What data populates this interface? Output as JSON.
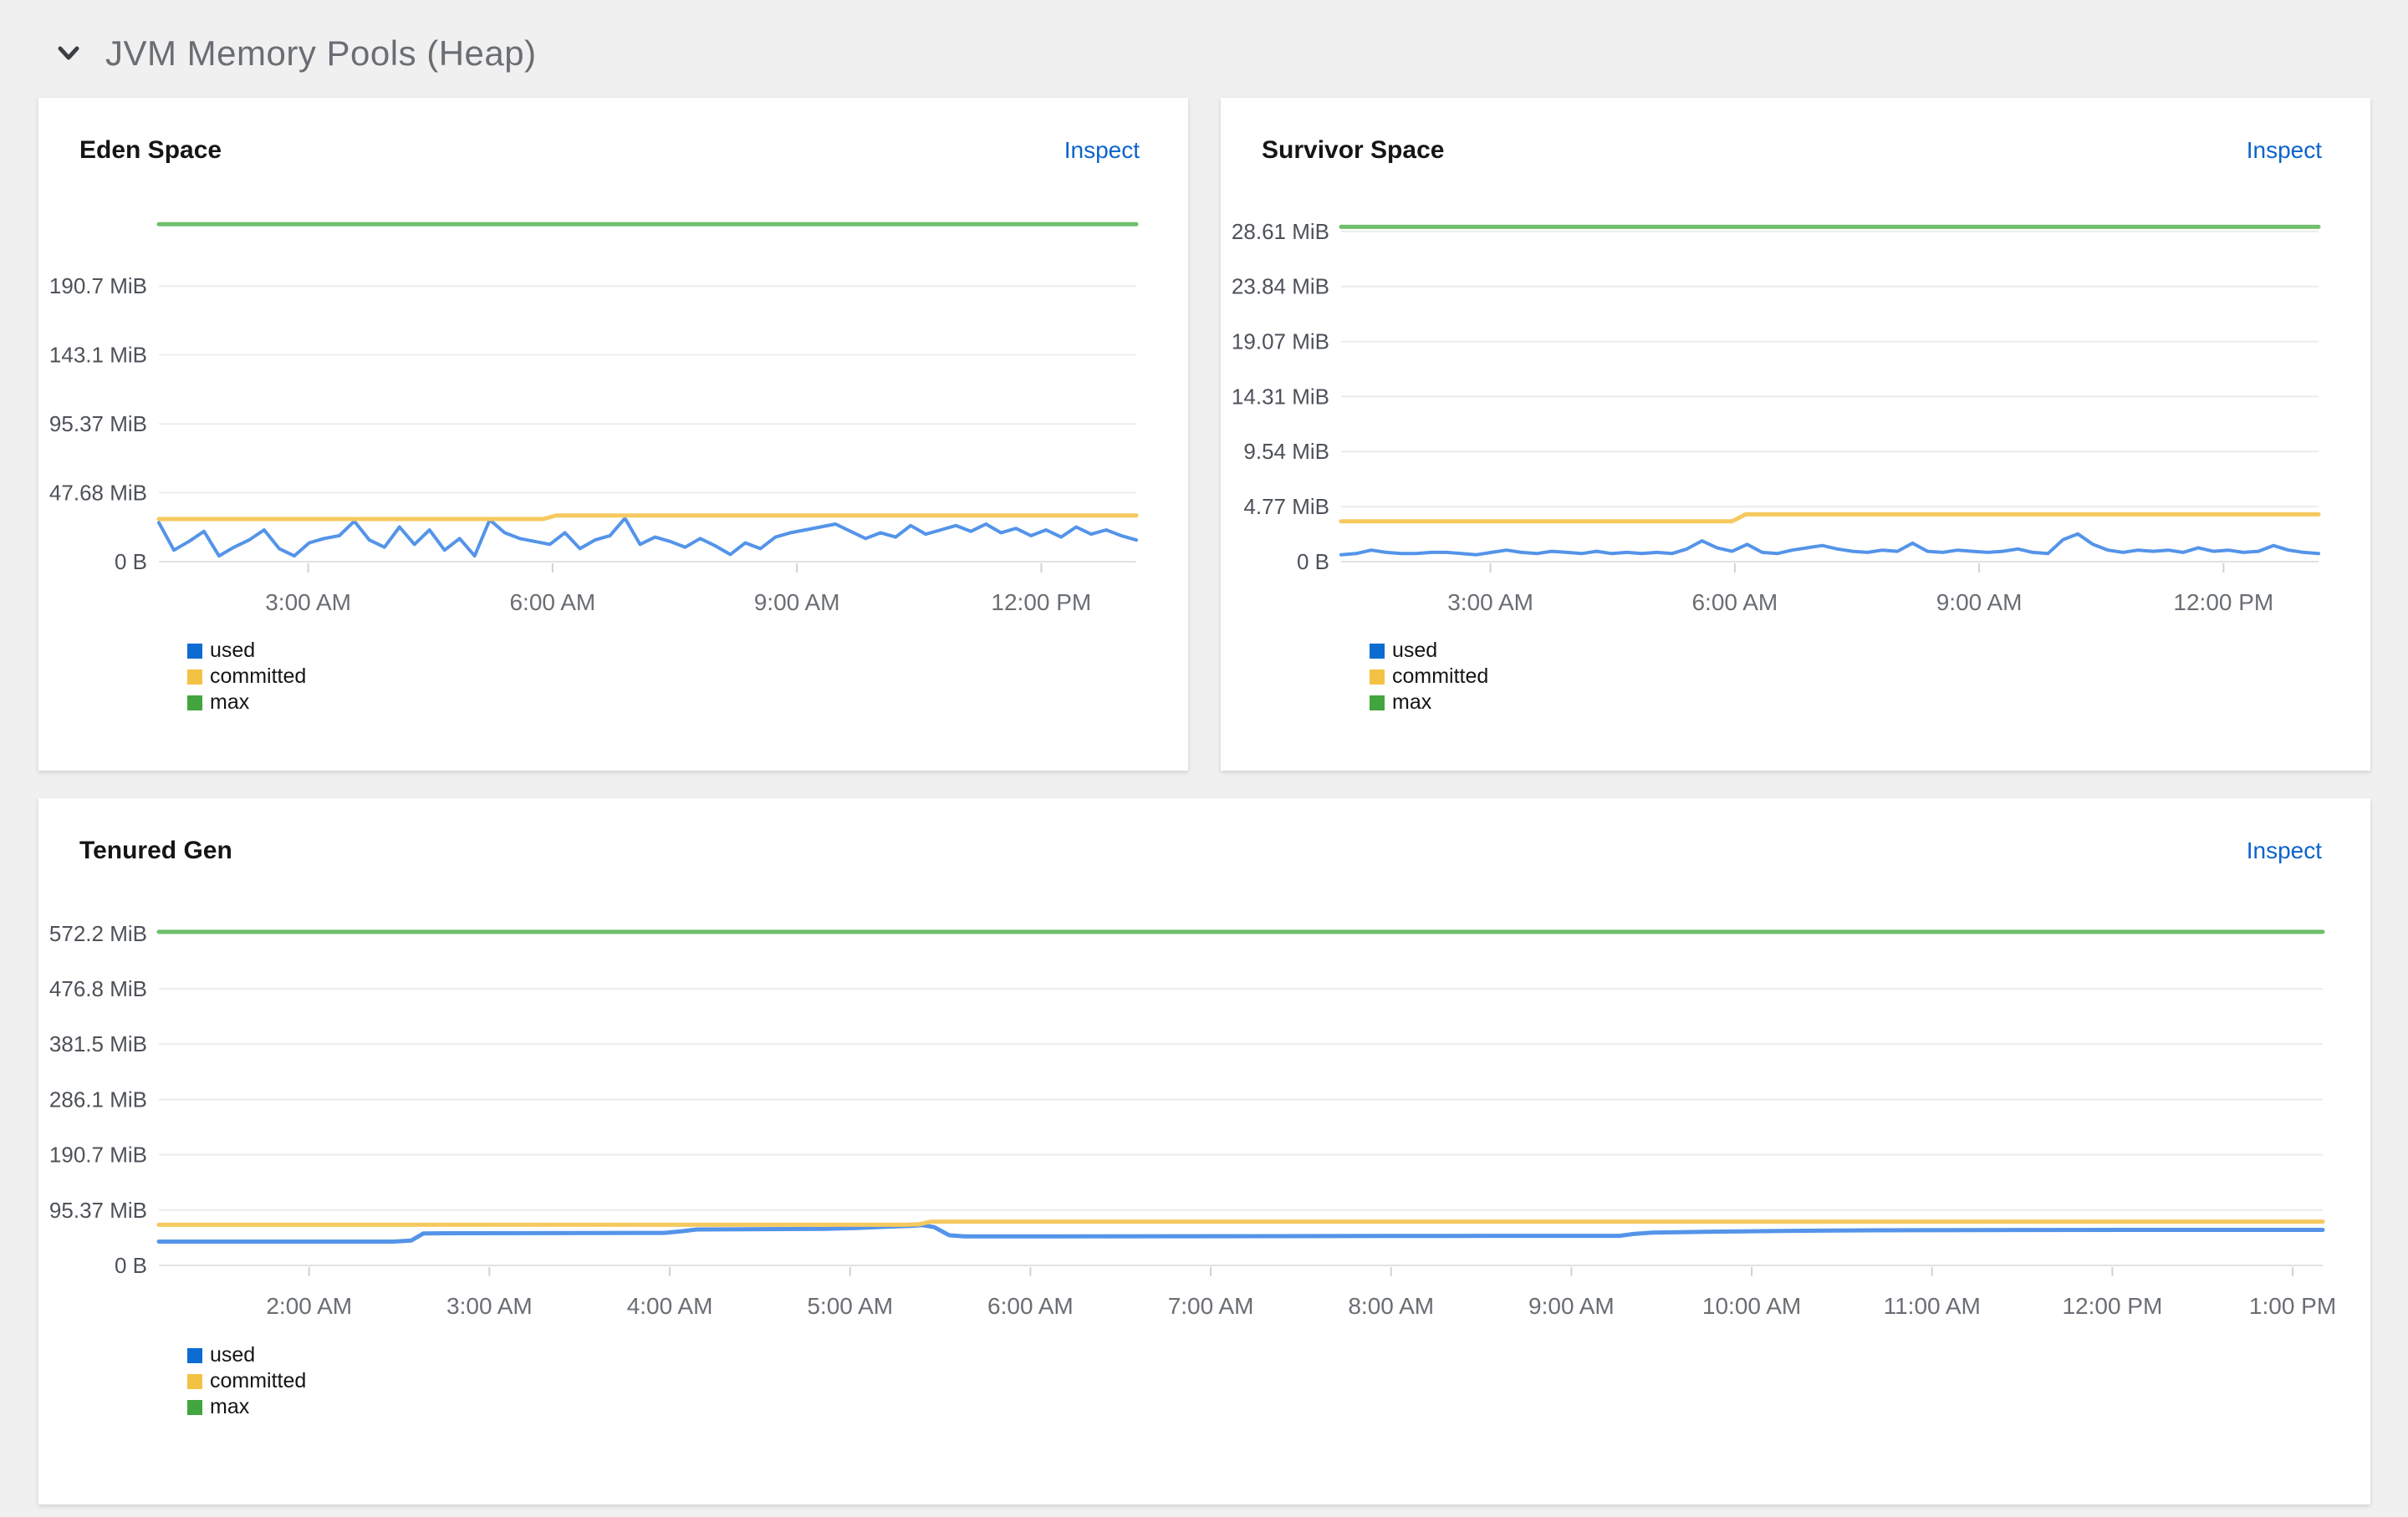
{
  "section": {
    "title": "JVM Memory Pools (Heap)",
    "collapse_icon": "chevron-down"
  },
  "colors": {
    "page_background": "#f0f0f0",
    "card_background": "#ffffff",
    "section_title": "#6a6e73",
    "panel_title": "#151515",
    "inspect_link": "#0b63cc",
    "gridline": "#ececec",
    "axis_baseline": "#e2e2e2",
    "tick_mark": "#d2d2d2",
    "y_tick_label": "#4d5258",
    "x_tick_label": "#6a6e73",
    "legend_label": "#151515"
  },
  "chart_data": [
    {
      "type": "line",
      "title": "Eden Space",
      "inspect_label": "Inspect",
      "ylim": [
        0,
        240
      ],
      "x_domain_minutes": [
        0,
        720
      ],
      "yticks": [
        {
          "value": 0,
          "label": "0 B"
        },
        {
          "value": 47.68,
          "label": "47.68 MiB"
        },
        {
          "value": 95.37,
          "label": "95.37 MiB"
        },
        {
          "value": 143.1,
          "label": "143.1 MiB"
        },
        {
          "value": 190.7,
          "label": "190.7 MiB"
        }
      ],
      "xticks": [
        {
          "t": 110,
          "label": "3:00 AM"
        },
        {
          "t": 290,
          "label": "6:00 AM"
        },
        {
          "t": 470,
          "label": "9:00 AM"
        },
        {
          "t": 650,
          "label": "12:00 PM"
        }
      ],
      "series": [
        {
          "name": "used",
          "color": "#5494e9",
          "legend_color": "#0d6cd0",
          "width": 4,
          "values": [
            27,
            8,
            14,
            21,
            4,
            10,
            15,
            22,
            9,
            4,
            13,
            16,
            18,
            28,
            15,
            10,
            24,
            12,
            22,
            8,
            16,
            4,
            29,
            20,
            16,
            14,
            12,
            20,
            9,
            15,
            18,
            30,
            12,
            17,
            14,
            10,
            16,
            11,
            5,
            13,
            9,
            17,
            20,
            22,
            24,
            26,
            21,
            16,
            20,
            17,
            25,
            19,
            22,
            25,
            21,
            26,
            20,
            23,
            18,
            22,
            17,
            24,
            19,
            22,
            18,
            15
          ]
        },
        {
          "name": "committed",
          "color": "#f6c95f",
          "legend_color": "#f3c244",
          "width": 5,
          "points": [
            [
              0,
              29.5
            ],
            [
              283,
              29.5
            ],
            [
              293,
              32
            ],
            [
              720,
              32
            ]
          ]
        },
        {
          "name": "max",
          "color": "#6fbf6d",
          "legend_color": "#43a53e",
          "width": 5,
          "points": [
            [
              0,
              233.5
            ],
            [
              720,
              233.5
            ]
          ]
        }
      ]
    },
    {
      "type": "line",
      "title": "Survivor Space",
      "inspect_label": "Inspect",
      "ylim": [
        0,
        29.9
      ],
      "x_domain_minutes": [
        0,
        720
      ],
      "yticks": [
        {
          "value": 0,
          "label": "0 B"
        },
        {
          "value": 4.77,
          "label": "4.77 MiB"
        },
        {
          "value": 9.54,
          "label": "9.54 MiB"
        },
        {
          "value": 14.31,
          "label": "14.31 MiB"
        },
        {
          "value": 19.07,
          "label": "19.07 MiB"
        },
        {
          "value": 23.84,
          "label": "23.84 MiB"
        },
        {
          "value": 28.61,
          "label": "28.61 MiB"
        }
      ],
      "xticks": [
        {
          "t": 110,
          "label": "3:00 AM"
        },
        {
          "t": 290,
          "label": "6:00 AM"
        },
        {
          "t": 470,
          "label": "9:00 AM"
        },
        {
          "t": 650,
          "label": "12:00 PM"
        }
      ],
      "series": [
        {
          "name": "used",
          "color": "#5494e9",
          "legend_color": "#0d6cd0",
          "width": 4,
          "values": [
            0.6,
            0.7,
            1.0,
            0.8,
            0.7,
            0.7,
            0.8,
            0.8,
            0.7,
            0.6,
            0.8,
            1.0,
            0.8,
            0.7,
            0.9,
            0.8,
            0.7,
            0.9,
            0.7,
            0.8,
            0.7,
            0.8,
            0.7,
            1.1,
            1.8,
            1.2,
            0.9,
            1.5,
            0.8,
            0.7,
            1.0,
            1.2,
            1.4,
            1.1,
            0.9,
            0.8,
            1.0,
            0.9,
            1.6,
            0.9,
            0.8,
            1.0,
            0.9,
            0.8,
            0.9,
            1.1,
            0.8,
            0.7,
            1.9,
            2.4,
            1.5,
            1.0,
            0.8,
            1.0,
            0.9,
            1.0,
            0.8,
            1.2,
            0.9,
            1.0,
            0.8,
            0.9,
            1.4,
            1.0,
            0.8,
            0.7
          ]
        },
        {
          "name": "committed",
          "color": "#f6c95f",
          "legend_color": "#f3c244",
          "width": 5,
          "points": [
            [
              0,
              3.5
            ],
            [
              288,
              3.5
            ],
            [
              298,
              4.1
            ],
            [
              720,
              4.1
            ]
          ]
        },
        {
          "name": "max",
          "color": "#6fbf6d",
          "legend_color": "#43a53e",
          "width": 5,
          "points": [
            [
              0,
              29.0
            ],
            [
              720,
              29.0
            ]
          ]
        }
      ]
    },
    {
      "type": "line",
      "title": "Tenured Gen",
      "inspect_label": "Inspect",
      "ylim": [
        0,
        585
      ],
      "x_domain_minutes": [
        0,
        720
      ],
      "yticks": [
        {
          "value": 0,
          "label": "0 B"
        },
        {
          "value": 95.37,
          "label": "95.37 MiB"
        },
        {
          "value": 190.7,
          "label": "190.7 MiB"
        },
        {
          "value": 286.1,
          "label": "286.1 MiB"
        },
        {
          "value": 381.5,
          "label": "381.5 MiB"
        },
        {
          "value": 476.8,
          "label": "476.8 MiB"
        },
        {
          "value": 572.2,
          "label": "572.2 MiB"
        }
      ],
      "xticks": [
        {
          "t": 50,
          "label": "2:00 AM"
        },
        {
          "t": 110,
          "label": "3:00 AM"
        },
        {
          "t": 170,
          "label": "4:00 AM"
        },
        {
          "t": 230,
          "label": "5:00 AM"
        },
        {
          "t": 290,
          "label": "6:00 AM"
        },
        {
          "t": 350,
          "label": "7:00 AM"
        },
        {
          "t": 410,
          "label": "8:00 AM"
        },
        {
          "t": 470,
          "label": "9:00 AM"
        },
        {
          "t": 530,
          "label": "10:00 AM"
        },
        {
          "t": 590,
          "label": "11:00 AM"
        },
        {
          "t": 650,
          "label": "12:00 PM"
        },
        {
          "t": 710,
          "label": "1:00 PM"
        }
      ],
      "series": [
        {
          "name": "used",
          "color": "#5494e9",
          "legend_color": "#0d6cd0",
          "width": 5,
          "points": [
            [
              0,
              41
            ],
            [
              78,
              41
            ],
            [
              84,
              43
            ],
            [
              88,
              55
            ],
            [
              95,
              55.5
            ],
            [
              168,
              56
            ],
            [
              174,
              59
            ],
            [
              179,
              62
            ],
            [
              222,
              63
            ],
            [
              232,
              64.5
            ],
            [
              242,
              66.5
            ],
            [
              250,
              68
            ],
            [
              254,
              69.5
            ],
            [
              258,
              66
            ],
            [
              263,
              52
            ],
            [
              268,
              50
            ],
            [
              340,
              50.3
            ],
            [
              430,
              50.8
            ],
            [
              486,
              51
            ],
            [
              491,
              54.5
            ],
            [
              497,
              56.5
            ],
            [
              515,
              58
            ],
            [
              540,
              59.5
            ],
            [
              570,
              60.5
            ],
            [
              605,
              61
            ],
            [
              660,
              61.3
            ],
            [
              720,
              61.3
            ]
          ]
        },
        {
          "name": "committed",
          "color": "#f6c95f",
          "legend_color": "#f3c244",
          "width": 5,
          "points": [
            [
              0,
              70
            ],
            [
              248,
              70
            ],
            [
              253,
              71
            ],
            [
              257,
              75.5
            ],
            [
              720,
              75.5
            ]
          ]
        },
        {
          "name": "max",
          "color": "#6fbf6d",
          "legend_color": "#43a53e",
          "width": 5,
          "points": [
            [
              0,
              575
            ],
            [
              720,
              575
            ]
          ]
        }
      ]
    }
  ]
}
